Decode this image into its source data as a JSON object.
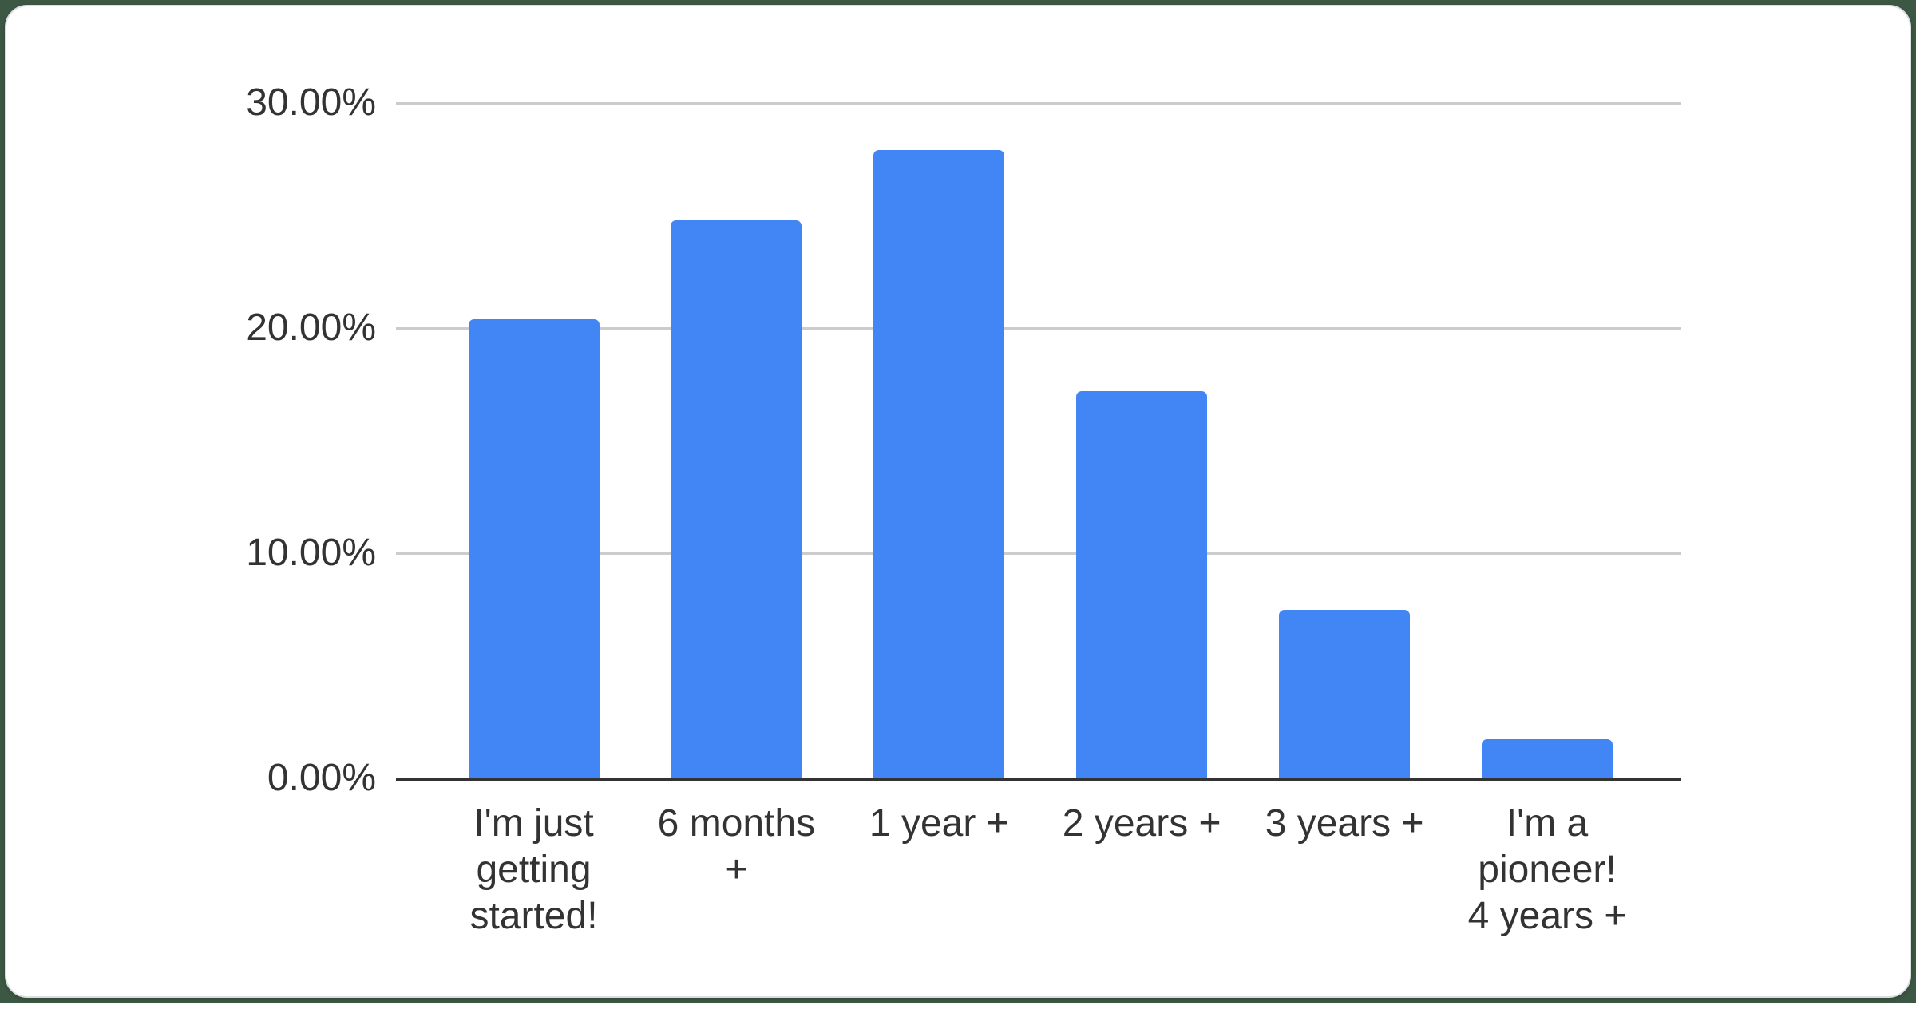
{
  "page": {
    "background_color": "#3c5743",
    "card_color": "#ffffff"
  },
  "chart_data": {
    "type": "bar",
    "title": "",
    "xlabel": "",
    "ylabel": "",
    "categories": [
      "I'm just getting started!",
      "6 months +",
      "1 year +",
      "2 years +",
      "3 years +",
      "I'm a pioneer! 4 years +"
    ],
    "values": [
      20.4,
      24.8,
      27.9,
      17.2,
      7.5,
      1.75
    ],
    "unit": "%",
    "ylim": [
      0,
      30
    ],
    "y_ticks": [
      {
        "value": 30,
        "label": "30.00%"
      },
      {
        "value": 20,
        "label": "20.00%"
      },
      {
        "value": 10,
        "label": "10.00%"
      },
      {
        "value": 0,
        "label": "0.00%"
      }
    ],
    "x_tick_lines": [
      [
        "I'm just",
        "getting",
        "started!"
      ],
      [
        "6 months",
        "+"
      ],
      [
        "1 year +"
      ],
      [
        "2 years +"
      ],
      [
        "3 years +"
      ],
      [
        "I'm a",
        "pioneer!",
        "4 years +"
      ]
    ],
    "bar_color": "#4285f4",
    "gridline_color": "#cccccc",
    "axis_color": "#333333",
    "label_color": "#333333",
    "grid": true,
    "legend_position": "none"
  }
}
